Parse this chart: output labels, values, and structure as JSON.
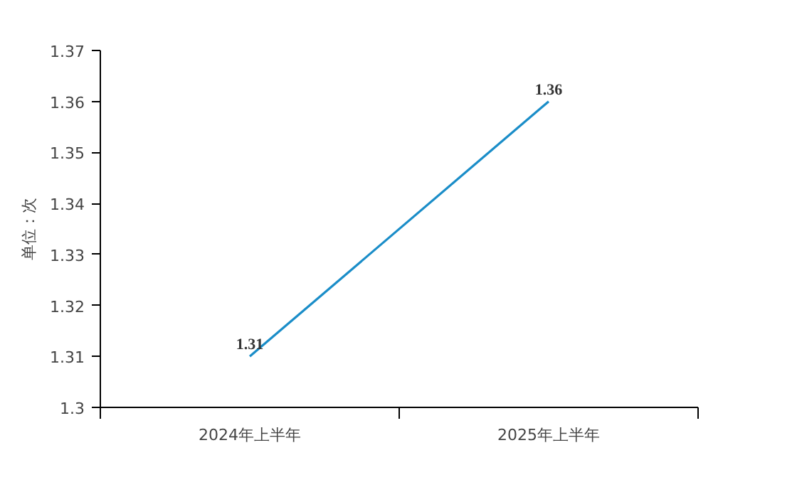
{
  "chart_data": {
    "type": "line",
    "ylabel": "单位：次",
    "categories": [
      "2024年上半年",
      "2025年上半年"
    ],
    "series": [
      {
        "color": "#1a8dc8",
        "values": [
          1.31,
          1.36
        ]
      }
    ],
    "ylim": [
      1.3,
      1.37
    ],
    "yticks": [
      1.3,
      1.31,
      1.32,
      1.33,
      1.34,
      1.35,
      1.36,
      1.37
    ],
    "data_labels": true,
    "grid": false,
    "marker": "none",
    "line_style": "solid"
  }
}
